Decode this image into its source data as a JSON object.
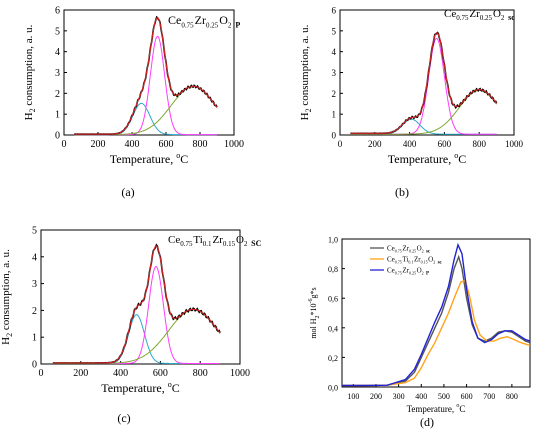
{
  "colors": {
    "experimental": "#000000",
    "fit_total": "#d62728",
    "peak_low": "#2ca9c9",
    "peak_main": "#ff3dff",
    "peak_high": "#7fa830",
    "legend_sc": "#555555",
    "legend_ti": "#ffa31a",
    "legend_p": "#2323d6"
  },
  "chart_data": [
    {
      "type": "line",
      "panel": "a",
      "caption": "(a)",
      "title": "Ce0.75Zr0.25O2 P",
      "title_parts": {
        "base": "Ce",
        "s1": "0.75",
        "b2": "Zr",
        "s2": "0.25",
        "b3": "O",
        "s3": "2",
        "tag": "P"
      },
      "xlabel": "Temperature, ",
      "xlabel_unit": {
        "sup": "o",
        "unit": "C"
      },
      "ylabel": "H",
      "ylabel_sub": "2",
      "ylabel_rest": " consumption, a. u.",
      "xlim": [
        0,
        1000
      ],
      "ylim": [
        0,
        6
      ],
      "x_ticks": [
        "0",
        "200",
        "400",
        "600",
        "800",
        "1000"
      ],
      "y_ticks": [
        "0",
        "1",
        "2",
        "3",
        "4",
        "5",
        "6"
      ],
      "x_tick_values": [
        0,
        200,
        400,
        600,
        800,
        1000
      ],
      "y_tick_values": [
        0,
        1,
        2,
        3,
        4,
        5,
        6
      ],
      "x_range": [
        60,
        900
      ],
      "baseline": 0.04,
      "peaks": [
        {
          "center": 455,
          "height": 1.5,
          "width": 50
        },
        {
          "center": 550,
          "height": 4.72,
          "width": 42
        },
        {
          "center": 760,
          "height": 2.3,
          "width": 130
        }
      ]
    },
    {
      "type": "line",
      "panel": "b",
      "caption": "(b)",
      "title": "Ce0.75Zr0.25O2 sc",
      "title_parts": {
        "base": "Ce",
        "s1": "0.75",
        "b2": "Zr",
        "s2": "0.25",
        "b3": "O",
        "s3": "2",
        "tag": "sc"
      },
      "xlabel": "Temperature, ",
      "xlabel_unit": {
        "sup": "o",
        "unit": "C"
      },
      "ylabel": "H",
      "ylabel_sub": "2",
      "ylabel_rest": " consumption, a. u.",
      "xlim": [
        0,
        1000
      ],
      "ylim": [
        0,
        6
      ],
      "x_ticks": [
        "0",
        "200",
        "400",
        "600",
        "800",
        "1000"
      ],
      "y_ticks": [
        "0",
        "1",
        "2",
        "3",
        "4",
        "5",
        "6"
      ],
      "x_tick_values": [
        0,
        200,
        400,
        600,
        800,
        1000
      ],
      "y_tick_values": [
        0,
        1,
        2,
        3,
        4,
        5,
        6
      ],
      "x_range": [
        60,
        900
      ],
      "baseline": 0.08,
      "peaks": [
        {
          "center": 410,
          "height": 0.72,
          "width": 50
        },
        {
          "center": 555,
          "height": 4.6,
          "width": 45
        },
        {
          "center": 800,
          "height": 2.1,
          "width": 115
        }
      ]
    },
    {
      "type": "line",
      "panel": "c",
      "caption": "(c)",
      "title": "Ce0.75Ti0.1Zr0.15O2 SC",
      "title_parts": {
        "base": "Ce",
        "s1": "0.75",
        "b2": "Ti",
        "s2": "0.1",
        "b3": "Zr",
        "s3": "0.15",
        "b4": "O",
        "s4": "2",
        "tag": "SC"
      },
      "xlabel": "Temperature, ",
      "xlabel_unit": {
        "sup": "o",
        "unit": "C"
      },
      "ylabel": "H",
      "ylabel_sub": "2",
      "ylabel_rest": " consumption, a. u.",
      "xlim": [
        0,
        1000
      ],
      "ylim": [
        0,
        5
      ],
      "x_ticks": [
        "0",
        "200",
        "400",
        "600",
        "800",
        "1000"
      ],
      "y_ticks": [
        "0",
        "1",
        "2",
        "3",
        "4",
        "5"
      ],
      "x_tick_values": [
        0,
        200,
        400,
        600,
        800,
        1000
      ],
      "y_tick_values": [
        0,
        1,
        2,
        3,
        4,
        5
      ],
      "x_range": [
        60,
        900
      ],
      "baseline": 0.04,
      "peaks": [
        {
          "center": 480,
          "height": 1.82,
          "width": 40
        },
        {
          "center": 578,
          "height": 3.62,
          "width": 37
        },
        {
          "center": 765,
          "height": 2.0,
          "width": 125
        }
      ]
    },
    {
      "type": "line",
      "panel": "d",
      "caption": "(d)",
      "xlabel": "Temperature, ",
      "xlabel_unit": {
        "sup": "o",
        "unit": "C"
      },
      "ylabel": "mol H",
      "ylabel_sub": "2",
      "ylabel_mid": "*10",
      "ylabel_sup": "-6",
      "ylabel_rest": "g*s",
      "xlim": [
        50,
        880
      ],
      "ylim": [
        0,
        1.0
      ],
      "x_ticks": [
        "100",
        "200",
        "300",
        "400",
        "500",
        "600",
        "700",
        "800"
      ],
      "y_ticks": [
        "0,0",
        "0,2",
        "0,4",
        "0,6",
        "0,8",
        "1,0"
      ],
      "x_tick_values": [
        100,
        200,
        300,
        400,
        500,
        600,
        700,
        800
      ],
      "y_tick_values": [
        0,
        0.2,
        0.4,
        0.6,
        0.8,
        1.0
      ],
      "legend_placement": "top-left",
      "series": [
        {
          "name": "Ce0.75Zr0.25O2 sc",
          "name_parts": {
            "base": "Ce",
            "s1": "0.75",
            "b2": "Zr",
            "s2": "0.25",
            "b3": "O",
            "s3": "2",
            "tag": "sc"
          },
          "x": [
            50,
            150,
            250,
            330,
            370,
            400,
            430,
            460,
            490,
            520,
            545,
            565,
            580,
            600,
            625,
            650,
            680,
            710,
            740,
            770,
            800,
            830,
            860,
            880
          ],
          "y": [
            0.01,
            0.01,
            0.012,
            0.04,
            0.1,
            0.2,
            0.3,
            0.4,
            0.5,
            0.64,
            0.8,
            0.88,
            0.8,
            0.6,
            0.42,
            0.33,
            0.31,
            0.33,
            0.37,
            0.38,
            0.37,
            0.34,
            0.31,
            0.3
          ]
        },
        {
          "name": "Ce0.75Ti0.1Zr0.15O2 sc",
          "name_parts": {
            "base": "Ce",
            "s1": "0.75",
            "b2": "Ti",
            "s2": "0.1",
            "b3": "Zr",
            "s3": "0.15",
            "b4": "O",
            "s4": "2",
            "tag": "sc"
          },
          "x": [
            50,
            150,
            250,
            330,
            370,
            400,
            430,
            460,
            490,
            520,
            550,
            575,
            595,
            615,
            635,
            660,
            690,
            720,
            750,
            780,
            810,
            840,
            880
          ],
          "y": [
            0.01,
            0.01,
            0.012,
            0.03,
            0.06,
            0.13,
            0.22,
            0.3,
            0.4,
            0.5,
            0.62,
            0.71,
            0.72,
            0.6,
            0.45,
            0.35,
            0.31,
            0.31,
            0.33,
            0.34,
            0.32,
            0.3,
            0.28
          ]
        },
        {
          "name": "Ce0.75Zr0.25O2 P",
          "name_parts": {
            "base": "Ce",
            "s1": "0.75",
            "b2": "Zr",
            "s2": "0.25",
            "b3": "O",
            "s3": "2",
            "tag": "P"
          },
          "x": [
            50,
            150,
            250,
            330,
            370,
            400,
            430,
            460,
            490,
            520,
            545,
            562,
            580,
            600,
            625,
            650,
            680,
            710,
            740,
            770,
            800,
            830,
            860,
            880
          ],
          "y": [
            0.01,
            0.01,
            0.012,
            0.05,
            0.12,
            0.22,
            0.33,
            0.44,
            0.54,
            0.68,
            0.86,
            0.96,
            0.9,
            0.66,
            0.44,
            0.33,
            0.3,
            0.32,
            0.36,
            0.38,
            0.38,
            0.35,
            0.32,
            0.31
          ]
        }
      ]
    }
  ]
}
